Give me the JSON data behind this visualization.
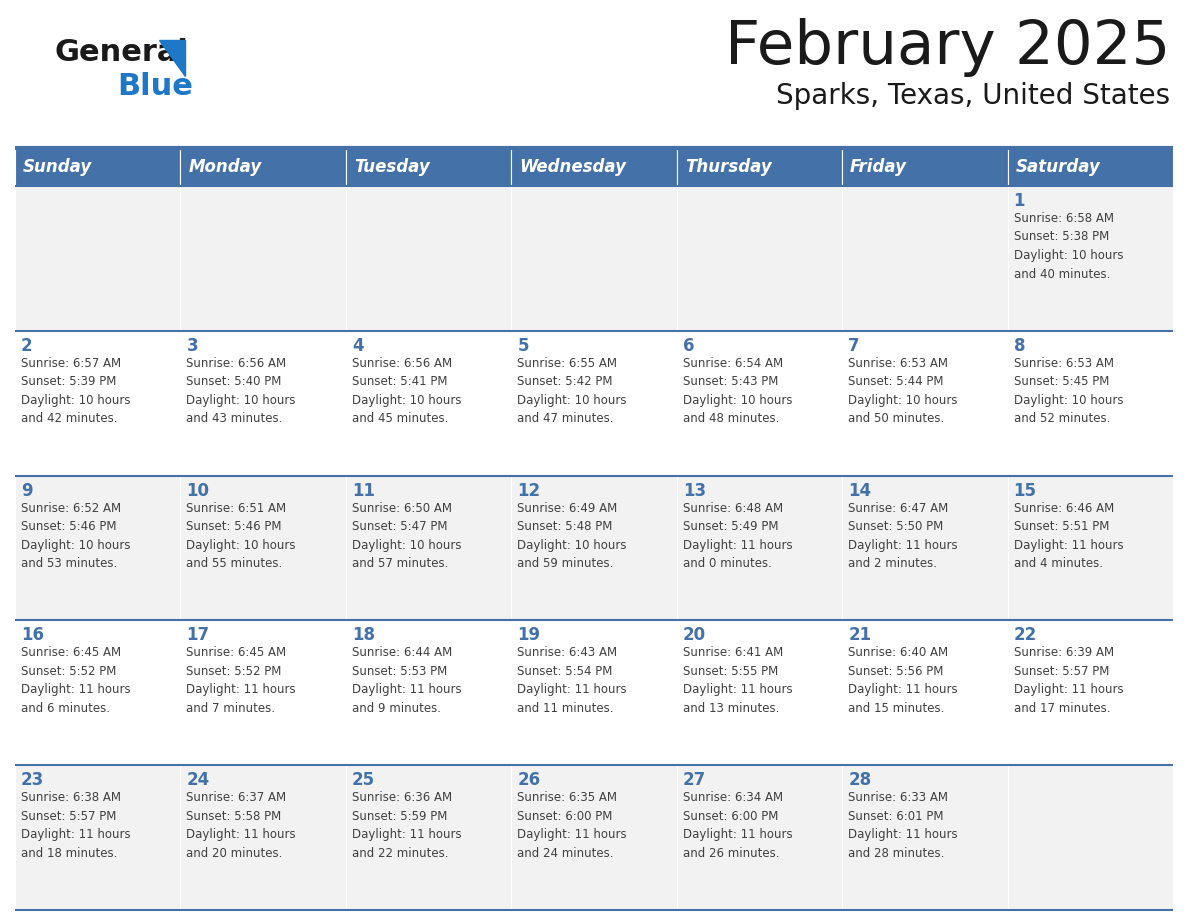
{
  "title": "February 2025",
  "subtitle": "Sparks, Texas, United States",
  "header_bg": "#4472a8",
  "header_text_color": "#ffffff",
  "cell_bg_odd": "#f2f2f2",
  "cell_bg_even": "#ffffff",
  "day_number_color": "#4472a8",
  "text_color": "#404040",
  "line_color": "#4472a8",
  "days_of_week": [
    "Sunday",
    "Monday",
    "Tuesday",
    "Wednesday",
    "Thursday",
    "Friday",
    "Saturday"
  ],
  "logo_black": "#1a1a1a",
  "logo_blue": "#1f77c8",
  "weeks": [
    [
      {
        "day": "",
        "info": ""
      },
      {
        "day": "",
        "info": ""
      },
      {
        "day": "",
        "info": ""
      },
      {
        "day": "",
        "info": ""
      },
      {
        "day": "",
        "info": ""
      },
      {
        "day": "",
        "info": ""
      },
      {
        "day": "1",
        "info": "Sunrise: 6:58 AM\nSunset: 5:38 PM\nDaylight: 10 hours\nand 40 minutes."
      }
    ],
    [
      {
        "day": "2",
        "info": "Sunrise: 6:57 AM\nSunset: 5:39 PM\nDaylight: 10 hours\nand 42 minutes."
      },
      {
        "day": "3",
        "info": "Sunrise: 6:56 AM\nSunset: 5:40 PM\nDaylight: 10 hours\nand 43 minutes."
      },
      {
        "day": "4",
        "info": "Sunrise: 6:56 AM\nSunset: 5:41 PM\nDaylight: 10 hours\nand 45 minutes."
      },
      {
        "day": "5",
        "info": "Sunrise: 6:55 AM\nSunset: 5:42 PM\nDaylight: 10 hours\nand 47 minutes."
      },
      {
        "day": "6",
        "info": "Sunrise: 6:54 AM\nSunset: 5:43 PM\nDaylight: 10 hours\nand 48 minutes."
      },
      {
        "day": "7",
        "info": "Sunrise: 6:53 AM\nSunset: 5:44 PM\nDaylight: 10 hours\nand 50 minutes."
      },
      {
        "day": "8",
        "info": "Sunrise: 6:53 AM\nSunset: 5:45 PM\nDaylight: 10 hours\nand 52 minutes."
      }
    ],
    [
      {
        "day": "9",
        "info": "Sunrise: 6:52 AM\nSunset: 5:46 PM\nDaylight: 10 hours\nand 53 minutes."
      },
      {
        "day": "10",
        "info": "Sunrise: 6:51 AM\nSunset: 5:46 PM\nDaylight: 10 hours\nand 55 minutes."
      },
      {
        "day": "11",
        "info": "Sunrise: 6:50 AM\nSunset: 5:47 PM\nDaylight: 10 hours\nand 57 minutes."
      },
      {
        "day": "12",
        "info": "Sunrise: 6:49 AM\nSunset: 5:48 PM\nDaylight: 10 hours\nand 59 minutes."
      },
      {
        "day": "13",
        "info": "Sunrise: 6:48 AM\nSunset: 5:49 PM\nDaylight: 11 hours\nand 0 minutes."
      },
      {
        "day": "14",
        "info": "Sunrise: 6:47 AM\nSunset: 5:50 PM\nDaylight: 11 hours\nand 2 minutes."
      },
      {
        "day": "15",
        "info": "Sunrise: 6:46 AM\nSunset: 5:51 PM\nDaylight: 11 hours\nand 4 minutes."
      }
    ],
    [
      {
        "day": "16",
        "info": "Sunrise: 6:45 AM\nSunset: 5:52 PM\nDaylight: 11 hours\nand 6 minutes."
      },
      {
        "day": "17",
        "info": "Sunrise: 6:45 AM\nSunset: 5:52 PM\nDaylight: 11 hours\nand 7 minutes."
      },
      {
        "day": "18",
        "info": "Sunrise: 6:44 AM\nSunset: 5:53 PM\nDaylight: 11 hours\nand 9 minutes."
      },
      {
        "day": "19",
        "info": "Sunrise: 6:43 AM\nSunset: 5:54 PM\nDaylight: 11 hours\nand 11 minutes."
      },
      {
        "day": "20",
        "info": "Sunrise: 6:41 AM\nSunset: 5:55 PM\nDaylight: 11 hours\nand 13 minutes."
      },
      {
        "day": "21",
        "info": "Sunrise: 6:40 AM\nSunset: 5:56 PM\nDaylight: 11 hours\nand 15 minutes."
      },
      {
        "day": "22",
        "info": "Sunrise: 6:39 AM\nSunset: 5:57 PM\nDaylight: 11 hours\nand 17 minutes."
      }
    ],
    [
      {
        "day": "23",
        "info": "Sunrise: 6:38 AM\nSunset: 5:57 PM\nDaylight: 11 hours\nand 18 minutes."
      },
      {
        "day": "24",
        "info": "Sunrise: 6:37 AM\nSunset: 5:58 PM\nDaylight: 11 hours\nand 20 minutes."
      },
      {
        "day": "25",
        "info": "Sunrise: 6:36 AM\nSunset: 5:59 PM\nDaylight: 11 hours\nand 22 minutes."
      },
      {
        "day": "26",
        "info": "Sunrise: 6:35 AM\nSunset: 6:00 PM\nDaylight: 11 hours\nand 24 minutes."
      },
      {
        "day": "27",
        "info": "Sunrise: 6:34 AM\nSunset: 6:00 PM\nDaylight: 11 hours\nand 26 minutes."
      },
      {
        "day": "28",
        "info": "Sunrise: 6:33 AM\nSunset: 6:01 PM\nDaylight: 11 hours\nand 28 minutes."
      },
      {
        "day": "",
        "info": ""
      }
    ]
  ]
}
